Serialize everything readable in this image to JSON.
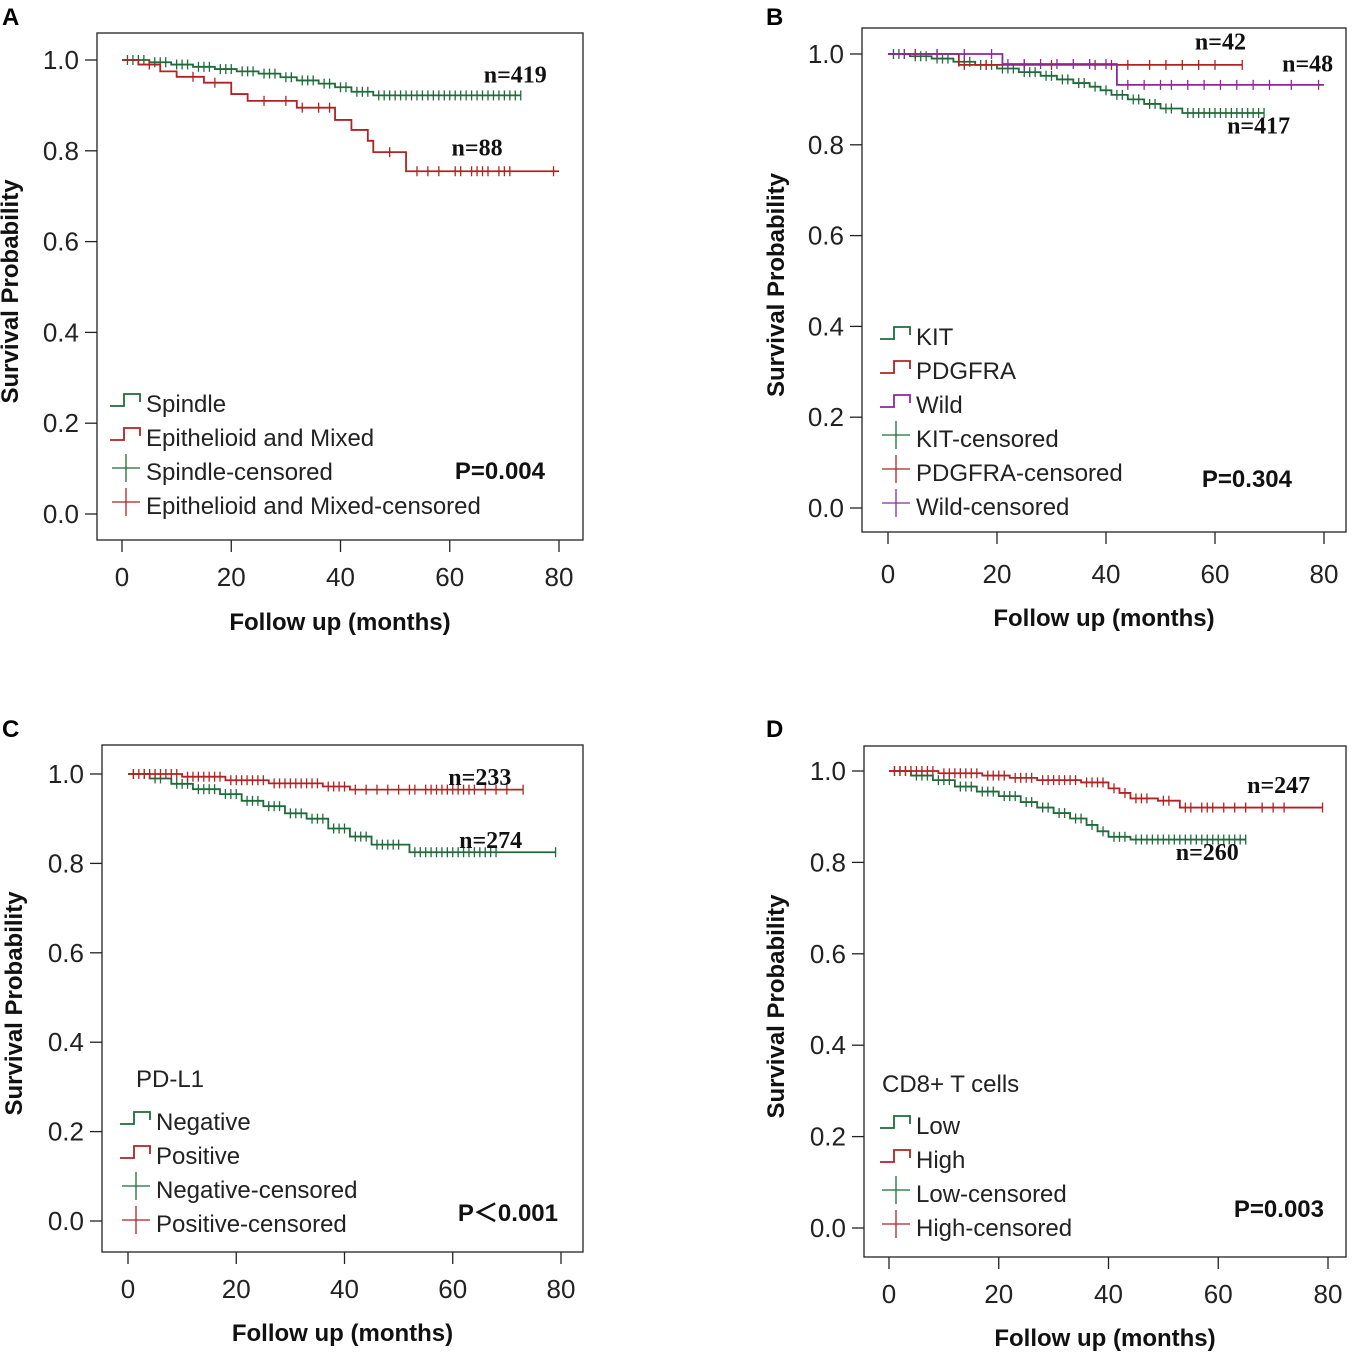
{
  "figure": {
    "panels": [
      "A",
      "B",
      "C",
      "D"
    ]
  },
  "chart_data": [
    {
      "panel": "A",
      "type": "line",
      "subtype": "kaplan-meier",
      "xlabel": "Follow up (months)",
      "ylabel": "Survival Probability",
      "xlim": [
        0,
        80
      ],
      "ylim": [
        0.0,
        1.0
      ],
      "xticks": [
        "0",
        "20",
        "40",
        "60",
        "80"
      ],
      "yticks": [
        "0.0",
        "0.2",
        "0.4",
        "0.6",
        "0.8",
        "1.0"
      ],
      "legend_title": "",
      "legend": [
        "Spindle",
        "Epithelioid and Mixed",
        "Spindle-censored",
        "Epithelioid and Mixed-censored"
      ],
      "p_value": "P=0.004",
      "series": [
        {
          "name": "Spindle",
          "color": "#1e6b3a",
          "n_label": "n=419",
          "n_label_at": [
            72,
            0.95
          ],
          "steps": [
            [
              0,
              1.0
            ],
            [
              5,
              0.995
            ],
            [
              9,
              0.99
            ],
            [
              13,
              0.985
            ],
            [
              17,
              0.98
            ],
            [
              21,
              0.975
            ],
            [
              25,
              0.97
            ],
            [
              29,
              0.962
            ],
            [
              32,
              0.955
            ],
            [
              36,
              0.948
            ],
            [
              39,
              0.94
            ],
            [
              42,
              0.93
            ],
            [
              46,
              0.922
            ],
            [
              73,
              0.922
            ]
          ],
          "censor": [
            1,
            2,
            3,
            4,
            6,
            7,
            8,
            10,
            11,
            12,
            14,
            15,
            16,
            18,
            19,
            20,
            22,
            23,
            24,
            26,
            27,
            28,
            30,
            31,
            33,
            34,
            35,
            37,
            38,
            40,
            41,
            43,
            44,
            45,
            47,
            48,
            49,
            50,
            51,
            52,
            53,
            54,
            55,
            56,
            57,
            58,
            59,
            60,
            61,
            62,
            63,
            64,
            65,
            66,
            67,
            68,
            69,
            70,
            71,
            72,
            73
          ]
        },
        {
          "name": "Epithelioid and Mixed",
          "color": "#b22222",
          "n_label": "n=88",
          "n_label_at": [
            65,
            0.79
          ],
          "steps": [
            [
              0,
              1.0
            ],
            [
              3,
              0.99
            ],
            [
              7,
              0.975
            ],
            [
              10,
              0.963
            ],
            [
              15,
              0.95
            ],
            [
              20,
              0.925
            ],
            [
              23,
              0.91
            ],
            [
              32,
              0.895
            ],
            [
              39,
              0.868
            ],
            [
              42,
              0.846
            ],
            [
              45,
              0.822
            ],
            [
              46,
              0.797
            ],
            [
              52,
              0.755
            ],
            [
              80,
              0.755
            ]
          ],
          "censor": [
            5,
            13,
            17,
            26,
            30,
            33,
            36,
            38,
            49,
            54,
            56,
            58,
            61,
            62,
            64,
            65,
            66,
            67,
            69,
            70,
            71,
            79
          ]
        }
      ]
    },
    {
      "panel": "B",
      "type": "line",
      "subtype": "kaplan-meier",
      "xlabel": "Follow up (months)",
      "ylabel": "Survival Probability",
      "xlim": [
        0,
        80
      ],
      "ylim": [
        0.0,
        1.0
      ],
      "xticks": [
        "0",
        "20",
        "40",
        "60",
        "80"
      ],
      "yticks": [
        "0.0",
        "0.2",
        "0.4",
        "0.6",
        "0.8",
        "1.0"
      ],
      "legend_title": "",
      "legend": [
        "KIT",
        "PDGFRA",
        "Wild",
        "KIT-censored",
        "PDGFRA-censored",
        "Wild-censored"
      ],
      "p_value": "P=0.304",
      "series": [
        {
          "name": "KIT",
          "color": "#1e6b3a",
          "n_label": "n=417",
          "n_label_at": [
            68,
            0.825
          ],
          "steps": [
            [
              0,
              1.0
            ],
            [
              4,
              0.995
            ],
            [
              8,
              0.99
            ],
            [
              12,
              0.983
            ],
            [
              16,
              0.976
            ],
            [
              20,
              0.968
            ],
            [
              24,
              0.96
            ],
            [
              28,
              0.952
            ],
            [
              31,
              0.944
            ],
            [
              34,
              0.936
            ],
            [
              37,
              0.928
            ],
            [
              39,
              0.92
            ],
            [
              41,
              0.91
            ],
            [
              44,
              0.9
            ],
            [
              47,
              0.89
            ],
            [
              50,
              0.88
            ],
            [
              54,
              0.87
            ],
            [
              69,
              0.87
            ]
          ],
          "censor": [
            1,
            2,
            3,
            5,
            6,
            7,
            9,
            10,
            11,
            13,
            14,
            15,
            17,
            18,
            19,
            21,
            22,
            23,
            25,
            26,
            27,
            29,
            30,
            32,
            33,
            35,
            36,
            38,
            40,
            42,
            43,
            45,
            46,
            48,
            49,
            51,
            52,
            55,
            56,
            57,
            58,
            59,
            60,
            61,
            62,
            63,
            64,
            65,
            66,
            67,
            68,
            69
          ]
        },
        {
          "name": "PDGFRA",
          "color": "#b22222",
          "n_label": "n=42",
          "n_label_at": [
            61,
            1.01
          ],
          "steps": [
            [
              0,
              1.0
            ],
            [
              13,
              0.976
            ],
            [
              65,
              0.976
            ]
          ],
          "censor": [
            5,
            9,
            14,
            18,
            25,
            30,
            38,
            41,
            44,
            48,
            51,
            54,
            57,
            60,
            65
          ]
        },
        {
          "name": "Wild",
          "color": "#8a2a9a",
          "n_label": "n=48",
          "n_label_at": [
            77,
            0.962
          ],
          "steps": [
            [
              0,
              1.0
            ],
            [
              21,
              0.978
            ],
            [
              42,
              0.932
            ],
            [
              80,
              0.932
            ]
          ],
          "censor": [
            3,
            9,
            14,
            19,
            22,
            25,
            28,
            31,
            34,
            37,
            40,
            44,
            47,
            50,
            52,
            55,
            58,
            61,
            64,
            67,
            70,
            74,
            79
          ]
        }
      ]
    },
    {
      "panel": "C",
      "type": "line",
      "subtype": "kaplan-meier",
      "xlabel": "Follow up (months)",
      "ylabel": "Survival Probability",
      "xlim": [
        0,
        80
      ],
      "ylim": [
        0.0,
        1.0
      ],
      "xticks": [
        "0",
        "20",
        "40",
        "60",
        "80"
      ],
      "yticks": [
        "0.0",
        "0.2",
        "0.4",
        "0.6",
        "0.8",
        "1.0"
      ],
      "legend_title": "PD-L1",
      "legend": [
        "Negative",
        "Positive",
        "Negative-censored",
        "Positive-censored"
      ],
      "p_value": "P＜0.001",
      "series": [
        {
          "name": "Negative",
          "color": "#1e6b3a",
          "n_label": "n=274",
          "n_label_at": [
            67,
            0.835
          ],
          "steps": [
            [
              0,
              1.0
            ],
            [
              4,
              0.99
            ],
            [
              8,
              0.978
            ],
            [
              12,
              0.966
            ],
            [
              17,
              0.955
            ],
            [
              21,
              0.94
            ],
            [
              25,
              0.928
            ],
            [
              29,
              0.912
            ],
            [
              33,
              0.9
            ],
            [
              37,
              0.878
            ],
            [
              41,
              0.86
            ],
            [
              45,
              0.842
            ],
            [
              52,
              0.825
            ],
            [
              79,
              0.825
            ]
          ],
          "censor": [
            1,
            3,
            5,
            6,
            9,
            10,
            11,
            13,
            14,
            15,
            16,
            18,
            19,
            20,
            22,
            23,
            24,
            26,
            27,
            28,
            30,
            31,
            32,
            34,
            35,
            36,
            38,
            39,
            40,
            42,
            43,
            44,
            46,
            47,
            48,
            49,
            50,
            53,
            54,
            55,
            56,
            57,
            58,
            59,
            60,
            61,
            62,
            63,
            64,
            65,
            66,
            67,
            68,
            79
          ]
        },
        {
          "name": "Positive",
          "color": "#b22222",
          "n_label": "n=233",
          "n_label_at": [
            65,
            0.975
          ],
          "steps": [
            [
              0,
              1.0
            ],
            [
              10,
              0.994
            ],
            [
              18,
              0.986
            ],
            [
              26,
              0.979
            ],
            [
              36,
              0.972
            ],
            [
              41,
              0.965
            ],
            [
              73,
              0.965
            ]
          ],
          "censor": [
            1,
            2,
            3,
            4,
            5,
            6,
            7,
            8,
            9,
            11,
            12,
            13,
            14,
            15,
            16,
            17,
            19,
            20,
            21,
            22,
            23,
            24,
            25,
            27,
            28,
            29,
            30,
            31,
            32,
            33,
            34,
            35,
            37,
            38,
            39,
            40,
            42,
            44,
            46,
            48,
            50,
            52,
            53,
            55,
            56,
            57,
            58,
            59,
            60,
            61,
            62,
            63,
            64,
            66,
            68,
            70,
            73
          ]
        }
      ]
    },
    {
      "panel": "D",
      "type": "line",
      "subtype": "kaplan-meier",
      "xlabel": "Follow up (months)",
      "ylabel": "Survival Probability",
      "xlim": [
        0,
        80
      ],
      "ylim": [
        0.0,
        1.0
      ],
      "xticks": [
        "0",
        "20",
        "40",
        "60",
        "80"
      ],
      "yticks": [
        "0.0",
        "0.2",
        "0.4",
        "0.6",
        "0.8",
        "1.0"
      ],
      "legend_title": "CD8+ T cells",
      "legend": [
        "Low",
        "High",
        "Low-censored",
        "High-censored"
      ],
      "p_value": "P=0.003",
      "series": [
        {
          "name": "Low",
          "color": "#1e6b3a",
          "n_label": "n=260",
          "n_label_at": [
            58,
            0.805
          ],
          "steps": [
            [
              0,
              1.0
            ],
            [
              4,
              0.99
            ],
            [
              8,
              0.98
            ],
            [
              12,
              0.966
            ],
            [
              16,
              0.955
            ],
            [
              20,
              0.945
            ],
            [
              24,
              0.932
            ],
            [
              27,
              0.92
            ],
            [
              30,
              0.908
            ],
            [
              33,
              0.896
            ],
            [
              36,
              0.882
            ],
            [
              38,
              0.868
            ],
            [
              40,
              0.856
            ],
            [
              44,
              0.85
            ],
            [
              65,
              0.85
            ]
          ],
          "censor": [
            1,
            2,
            3,
            5,
            6,
            7,
            9,
            10,
            11,
            13,
            14,
            15,
            17,
            18,
            19,
            21,
            22,
            23,
            25,
            26,
            28,
            29,
            31,
            32,
            34,
            35,
            37,
            39,
            41,
            42,
            43,
            45,
            46,
            47,
            48,
            49,
            50,
            51,
            52,
            53,
            54,
            55,
            56,
            57,
            58,
            59,
            60,
            61,
            62,
            63,
            64,
            65
          ]
        },
        {
          "name": "High",
          "color": "#b22222",
          "n_label": "n=247",
          "n_label_at": [
            71,
            0.952
          ],
          "steps": [
            [
              0,
              1.0
            ],
            [
              9,
              0.995
            ],
            [
              17,
              0.99
            ],
            [
              22,
              0.985
            ],
            [
              27,
              0.98
            ],
            [
              35,
              0.975
            ],
            [
              40,
              0.962
            ],
            [
              42,
              0.952
            ],
            [
              44,
              0.94
            ],
            [
              49,
              0.935
            ],
            [
              53,
              0.92
            ],
            [
              79,
              0.92
            ]
          ],
          "censor": [
            1,
            2,
            3,
            4,
            5,
            6,
            7,
            8,
            10,
            11,
            12,
            13,
            14,
            15,
            16,
            18,
            19,
            20,
            21,
            23,
            24,
            25,
            26,
            28,
            29,
            30,
            31,
            32,
            33,
            34,
            36,
            37,
            38,
            39,
            41,
            43,
            45,
            46,
            47,
            50,
            51,
            54,
            55,
            57,
            58,
            59,
            61,
            63,
            65,
            68,
            70,
            72,
            79
          ]
        }
      ]
    }
  ]
}
